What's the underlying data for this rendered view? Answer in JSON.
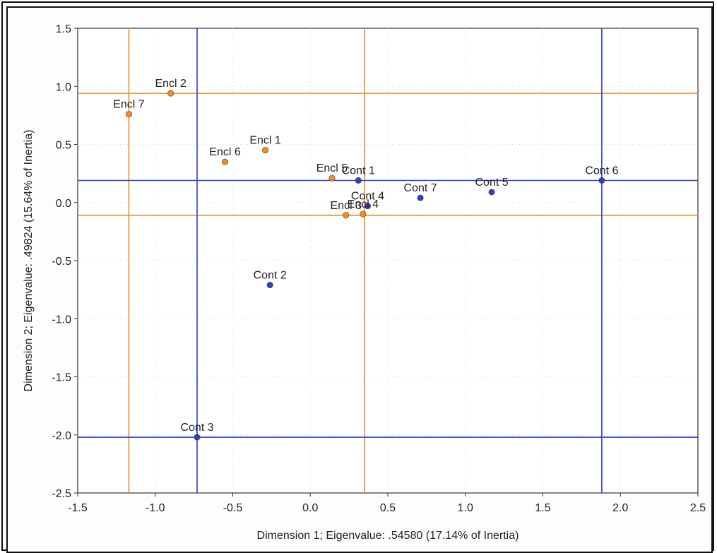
{
  "chart_data": {
    "type": "scatter",
    "title": "",
    "xlabel": "Dimension 1; Eigenvalue: .54580 (17.14% of Inertia)",
    "ylabel": "Dimension 2; Eigenvalue: .49824 (15.64% of Inertia)",
    "xlim": [
      -1.5,
      2.5
    ],
    "ylim": [
      -2.5,
      1.5
    ],
    "xticks": [
      -1.5,
      -1.0,
      -0.5,
      0.0,
      0.5,
      1.0,
      1.5,
      2.0,
      2.5
    ],
    "yticks": [
      -2.5,
      -2.0,
      -1.5,
      -1.0,
      -0.5,
      0.0,
      0.5,
      1.0,
      1.5
    ],
    "xtick_labels": [
      "-1.5",
      "-1.0",
      "-0.5",
      "0.0",
      "0.5",
      "1.0",
      "1.5",
      "2.0",
      "2.5"
    ],
    "ytick_labels": [
      "-2.5",
      "-2.0",
      "-1.5",
      "-1.0",
      "-0.5",
      "0.0",
      "0.5",
      "1.0",
      "1.5"
    ],
    "grid": true,
    "series": [
      {
        "color": "#f28c28",
        "points": [
          {
            "label": "Encl 1",
            "x": -0.29,
            "y": 0.45
          },
          {
            "label": "Encl 2",
            "x": -0.9,
            "y": 0.94
          },
          {
            "label": "Encl 4",
            "x": 0.34,
            "y": -0.1
          },
          {
            "label": "Encl 5",
            "x": 0.14,
            "y": 0.21
          },
          {
            "label": "Encl 6",
            "x": -0.55,
            "y": 0.35
          },
          {
            "label": "Encl 7",
            "x": -1.17,
            "y": 0.76
          },
          {
            "label": "Encl 3",
            "x": 0.23,
            "y": -0.11
          }
        ]
      },
      {
        "color": "#2b3fd1",
        "points": [
          {
            "label": "Cont 1",
            "x": 0.31,
            "y": 0.19
          },
          {
            "label": "Cont 2",
            "x": -0.26,
            "y": -0.71
          },
          {
            "label": "Cont 3",
            "x": -0.73,
            "y": -2.02
          },
          {
            "label": "Cont 4",
            "x": 0.37,
            "y": -0.03
          },
          {
            "label": "Cont 5",
            "x": 1.17,
            "y": 0.09
          },
          {
            "label": "Cont 6",
            "x": 1.88,
            "y": 0.19
          },
          {
            "label": "Cont 7",
            "x": 0.71,
            "y": 0.04
          }
        ]
      }
    ],
    "reference_lines": [
      {
        "color": "#f28c28",
        "orientation": "vertical",
        "value": -1.17
      },
      {
        "color": "#f28c28",
        "orientation": "vertical",
        "value": 0.35
      },
      {
        "color": "#f28c28",
        "orientation": "horizontal",
        "value": 0.94
      },
      {
        "color": "#f28c28",
        "orientation": "horizontal",
        "value": -0.11
      },
      {
        "color": "#2b3fd1",
        "orientation": "vertical",
        "value": -0.73
      },
      {
        "color": "#2b3fd1",
        "orientation": "vertical",
        "value": 1.88
      },
      {
        "color": "#2b3fd1",
        "orientation": "horizontal",
        "value": 0.19
      },
      {
        "color": "#2b3fd1",
        "orientation": "horizontal",
        "value": -2.02
      }
    ]
  }
}
